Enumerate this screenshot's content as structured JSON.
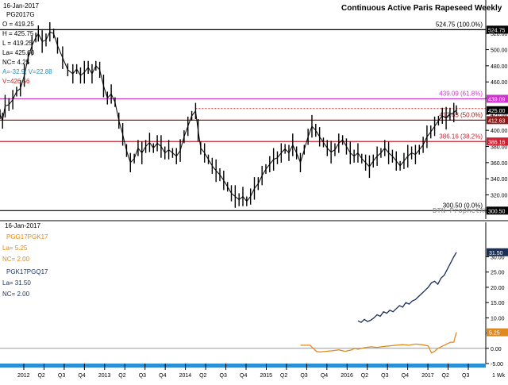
{
  "chart_data": [
    {
      "type": "bar",
      "subtype": "ohlc-weekly",
      "title": "Continuous Active Paris Rapeseed Weekly",
      "watermark": "DTN ProphetX®",
      "info": {
        "date": "16-Jan-2017",
        "symbol": "PG2017G",
        "lines": [
          "O = 419.25",
          "H = 425.75",
          "L = 419.25",
          "La= 425.00",
          "NC= 4.25"
        ],
        "indicator_a": "A=-32.9, V=22.88",
        "indicator_v": "V=426.56"
      },
      "ylim": [
        290,
        532
      ],
      "yticks": [
        300,
        320,
        340,
        360,
        380,
        400,
        420,
        440,
        460,
        480,
        500,
        520
      ],
      "fib_levels": [
        {
          "value": 524.75,
          "label": "524.75 (100.0%)",
          "tag": "524.75",
          "color": "#000000"
        },
        {
          "value": 439.09,
          "label": "439.09 (61.8%)",
          "tag": "439.09",
          "color": "#cc33cc"
        },
        {
          "value": 412.63,
          "label": "412.63 (50.0%)",
          "tag": "412.63",
          "color": "#8b1a1a"
        },
        {
          "value": 386.16,
          "label": "386.16 (38.2%)",
          "tag": "386.16",
          "color": "#cc2233"
        },
        {
          "value": 300.5,
          "label": "300.50 (0.0%)",
          "tag": "300.50",
          "color": "#000000"
        }
      ],
      "dotted_resistance": 427,
      "last_tag": "425.00",
      "series_close": [
        [
          0,
          420
        ],
        [
          0.4,
          412
        ],
        [
          0.8,
          430
        ],
        [
          1.4,
          432
        ],
        [
          2,
          438
        ],
        [
          2.6,
          448
        ],
        [
          3.2,
          452
        ],
        [
          3.8,
          468
        ],
        [
          4.4,
          490
        ],
        [
          5,
          505
        ],
        [
          5.6,
          515
        ],
        [
          6,
          520
        ],
        [
          6.6,
          510
        ],
        [
          7.2,
          512
        ],
        [
          7.8,
          522
        ],
        [
          8.4,
          520
        ],
        [
          9,
          505
        ],
        [
          9.8,
          490
        ],
        [
          10.6,
          475
        ],
        [
          11.4,
          470
        ],
        [
          12,
          476
        ],
        [
          12.6,
          468
        ],
        [
          13.2,
          472
        ],
        [
          13.8,
          478
        ],
        [
          14.4,
          470
        ],
        [
          15,
          480
        ],
        [
          15.6,
          475
        ],
        [
          16.2,
          455
        ],
        [
          16.8,
          440
        ],
        [
          17.4,
          445
        ],
        [
          18,
          435
        ],
        [
          18.6,
          412
        ],
        [
          19.2,
          395
        ],
        [
          19.8,
          375
        ],
        [
          20.4,
          360
        ],
        [
          21,
          365
        ],
        [
          21.6,
          378
        ],
        [
          22.2,
          372
        ],
        [
          22.8,
          380
        ],
        [
          23.4,
          385
        ],
        [
          24,
          378
        ],
        [
          24.6,
          384
        ],
        [
          25.2,
          380
        ],
        [
          25.8,
          372
        ],
        [
          26.4,
          376
        ],
        [
          27,
          372
        ],
        [
          27.6,
          368
        ],
        [
          28.2,
          375
        ],
        [
          28.8,
          392
        ],
        [
          29.4,
          405
        ],
        [
          30,
          418
        ],
        [
          30.6,
          424
        ],
        [
          31,
          400
        ],
        [
          31.4,
          378
        ],
        [
          32,
          372
        ],
        [
          32.6,
          364
        ],
        [
          33.2,
          356
        ],
        [
          33.8,
          350
        ],
        [
          34.4,
          345
        ],
        [
          35,
          338
        ],
        [
          35.6,
          330
        ],
        [
          36.2,
          322
        ],
        [
          36.8,
          318
        ],
        [
          37.4,
          314
        ],
        [
          38,
          318
        ],
        [
          38.6,
          312
        ],
        [
          39.2,
          318
        ],
        [
          39.8,
          328
        ],
        [
          40.4,
          334
        ],
        [
          41,
          344
        ],
        [
          41.6,
          352
        ],
        [
          42.2,
          358
        ],
        [
          42.8,
          364
        ],
        [
          43.4,
          366
        ],
        [
          44,
          372
        ],
        [
          44.6,
          377
        ],
        [
          45.2,
          372
        ],
        [
          45.8,
          382
        ],
        [
          46.4,
          372
        ],
        [
          47,
          360
        ],
        [
          47.6,
          376
        ],
        [
          48.2,
          392
        ],
        [
          48.8,
          405
        ],
        [
          49.4,
          400
        ],
        [
          50,
          392
        ],
        [
          50.6,
          385
        ],
        [
          51.2,
          378
        ],
        [
          51.8,
          373
        ],
        [
          52.4,
          376
        ],
        [
          53,
          384
        ],
        [
          53.6,
          388
        ],
        [
          54.2,
          380
        ],
        [
          54.8,
          372
        ],
        [
          55.4,
          368
        ],
        [
          56,
          372
        ],
        [
          56.6,
          365
        ],
        [
          57.2,
          360
        ],
        [
          57.8,
          355
        ],
        [
          58.4,
          362
        ],
        [
          59,
          368
        ],
        [
          59.6,
          372
        ],
        [
          60.2,
          378
        ],
        [
          60.8,
          372
        ],
        [
          61.4,
          368
        ],
        [
          62,
          362
        ],
        [
          62.6,
          356
        ],
        [
          63.2,
          362
        ],
        [
          63.8,
          368
        ],
        [
          64.4,
          372
        ],
        [
          65,
          370
        ],
        [
          65.6,
          376
        ],
        [
          66.2,
          382
        ],
        [
          66.8,
          392
        ],
        [
          67.4,
          398
        ],
        [
          68,
          405
        ],
        [
          68.6,
          412
        ],
        [
          69.2,
          418
        ],
        [
          69.8,
          415
        ],
        [
          70.4,
          420
        ],
        [
          71,
          422
        ],
        [
          71.4,
          425
        ]
      ],
      "x_labels": [
        "2012",
        "Q2",
        "Q3",
        "Q4",
        "2013",
        "Q2",
        "Q3",
        "Q4",
        "2014",
        "Q2",
        "Q3",
        "Q4",
        "2015",
        "Q2",
        "Q3",
        "Q4",
        "2016",
        "Q2",
        "Q3",
        "Q4",
        "2017",
        "Q2",
        "Q3"
      ],
      "x_label_extra": "1 Wk"
    },
    {
      "type": "line",
      "title": "",
      "info": {
        "date": "16-Jan-2017",
        "series1_symbol": "PGG17PGK17",
        "series1_lines": [
          "La= 5.25",
          "NC= 2.00"
        ],
        "series2_symbol": "PGK17PGQ17",
        "series2_lines": [
          "La= 31.50",
          "NC= 2.00"
        ]
      },
      "ylim": [
        -5,
        33
      ],
      "yticks": [
        "30.00",
        "25.00",
        "20.00",
        "15.00",
        "10.00",
        "5.00",
        "0.00",
        "-5.00"
      ],
      "ytick_values": [
        30,
        25,
        20,
        15,
        10,
        5,
        0,
        -5
      ],
      "zero_line": 0,
      "series": [
        {
          "name": "PGK17PGQ17",
          "color": "#1a2f5a",
          "tag": "31.50",
          "points": [
            [
              56,
              9
            ],
            [
              56.5,
              8.5
            ],
            [
              57,
              9.5
            ],
            [
              57.5,
              8.8
            ],
            [
              58,
              9.2
            ],
            [
              58.5,
              10
            ],
            [
              59,
              11
            ],
            [
              59.5,
              10.5
            ],
            [
              60,
              12
            ],
            [
              60.5,
              11.5
            ],
            [
              61,
              12.5
            ],
            [
              61.5,
              12
            ],
            [
              62,
              13
            ],
            [
              62.5,
              14
            ],
            [
              63,
              13.5
            ],
            [
              63.5,
              15
            ],
            [
              64,
              14.5
            ],
            [
              64.5,
              15.5
            ],
            [
              65,
              16
            ],
            [
              65.5,
              17
            ],
            [
              66,
              18
            ],
            [
              66.5,
              19
            ],
            [
              67,
              20
            ],
            [
              67.5,
              21.5
            ],
            [
              68,
              22
            ],
            [
              68.5,
              21
            ],
            [
              69,
              23
            ],
            [
              69.5,
              24
            ],
            [
              70,
              26
            ],
            [
              70.5,
              28
            ],
            [
              71,
              30
            ],
            [
              71.4,
              31.5
            ]
          ]
        },
        {
          "name": "PGG17PGK17",
          "color": "#e08a1e",
          "tag": "5.25",
          "points": [
            [
              47,
              1
            ],
            [
              48,
              1
            ],
            [
              48.5,
              1
            ],
            [
              49,
              0
            ],
            [
              49.5,
              -1
            ],
            [
              50,
              -1.2
            ],
            [
              51,
              -1
            ],
            [
              52,
              -0.8
            ],
            [
              53,
              -0.5
            ],
            [
              54,
              -1
            ],
            [
              55,
              -0.5
            ],
            [
              55.5,
              0
            ],
            [
              56,
              -0.3
            ],
            [
              57,
              0.2
            ],
            [
              58,
              0.5
            ],
            [
              59,
              0.3
            ],
            [
              60,
              0.6
            ],
            [
              61,
              0.8
            ],
            [
              62,
              1
            ],
            [
              63,
              1.2
            ],
            [
              64,
              1
            ],
            [
              65,
              1.4
            ],
            [
              66,
              1.2
            ],
            [
              67,
              0.8
            ],
            [
              67.5,
              -1.5
            ],
            [
              68,
              -1
            ],
            [
              68.5,
              0
            ],
            [
              69,
              0.5
            ],
            [
              69.5,
              1
            ],
            [
              70,
              1.5
            ],
            [
              70.5,
              2
            ],
            [
              71,
              2
            ],
            [
              71.4,
              5.25
            ]
          ]
        }
      ]
    }
  ]
}
